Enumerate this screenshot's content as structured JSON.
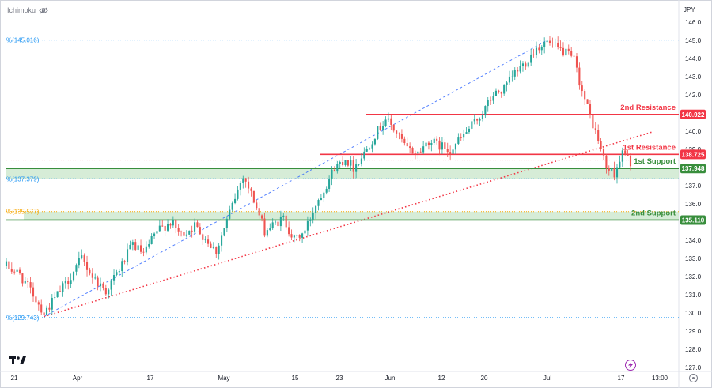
{
  "chart_data": {
    "type": "candlestick",
    "indicator_label": "Ichimoku",
    "currency_label": "JPY",
    "ylim": [
      126.7,
      146.8
    ],
    "y_ticks": [
      146.0,
      145.0,
      144.0,
      143.0,
      142.0,
      141.0,
      140.0,
      139.0,
      138.0,
      137.0,
      136.0,
      135.0,
      134.0,
      133.0,
      132.0,
      131.0,
      130.0,
      129.0,
      128.0,
      127.0
    ],
    "x_ticks": [
      "21",
      "Apr",
      "17",
      "May",
      "15",
      "23",
      "Jun",
      "12",
      "20",
      "Jul",
      "17",
      "13:00"
    ],
    "fib_levels": [
      {
        "label": "(145.016)",
        "value": 145.016,
        "color": "#2196f3"
      },
      {
        "label": "(137.379)",
        "value": 137.379,
        "color": "#2196f3"
      },
      {
        "label": "(135.577)",
        "value": 135.577,
        "color": "#f7a600"
      },
      {
        "label": "(129.743)",
        "value": 129.743,
        "color": "#2196f3"
      }
    ],
    "levels": [
      {
        "name": "2nd Resistance",
        "value": 140.922,
        "tag": "140.922",
        "color": "#f23645"
      },
      {
        "name": "1st Resistance",
        "value": 138.725,
        "tag": "138.725",
        "color": "#f23645"
      },
      {
        "name": "1st Support",
        "value": 137.948,
        "tag": "137.948",
        "color": "#388e3c"
      },
      {
        "name": "2nd Support",
        "value": 135.11,
        "tag": "135.110",
        "color": "#388e3c"
      }
    ],
    "colors": {
      "up": "#26a69a",
      "down": "#ef5350",
      "resistance": "#f23645",
      "support": "#388e3c",
      "support_zone": "#c8e6c9",
      "trendline": "#f23645",
      "channel": "#2962ff",
      "fib": "#2196f3"
    },
    "path_anchors": [
      [
        0,
        132.6
      ],
      [
        5,
        132.1
      ],
      [
        10,
        131.0
      ],
      [
        14,
        130.0
      ],
      [
        18,
        130.8
      ],
      [
        23,
        131.8
      ],
      [
        28,
        133.0
      ],
      [
        32,
        132.0
      ],
      [
        37,
        131.2
      ],
      [
        42,
        132.4
      ],
      [
        47,
        133.8
      ],
      [
        51,
        133.2
      ],
      [
        56,
        134.5
      ],
      [
        61,
        135.0
      ],
      [
        65,
        134.3
      ],
      [
        70,
        134.8
      ],
      [
        74,
        134.1
      ],
      [
        78,
        133.4
      ],
      [
        83,
        135.5
      ],
      [
        88,
        137.6
      ],
      [
        92,
        136.2
      ],
      [
        96,
        134.5
      ],
      [
        100,
        134.9
      ],
      [
        103,
        135.2
      ],
      [
        107,
        134.0
      ],
      [
        111,
        134.5
      ],
      [
        115,
        136.0
      ],
      [
        118,
        136.8
      ],
      [
        122,
        138.0
      ],
      [
        126,
        138.5
      ],
      [
        129,
        138.0
      ],
      [
        133,
        138.8
      ],
      [
        137,
        139.8
      ],
      [
        141,
        140.7
      ],
      [
        145,
        139.9
      ],
      [
        149,
        139.0
      ],
      [
        153,
        138.8
      ],
      [
        157,
        139.5
      ],
      [
        161,
        139.2
      ],
      [
        165,
        139.0
      ],
      [
        169,
        139.6
      ],
      [
        173,
        140.3
      ],
      [
        177,
        141.0
      ],
      [
        181,
        142.0
      ],
      [
        185,
        142.3
      ],
      [
        189,
        143.2
      ],
      [
        193,
        143.8
      ],
      [
        197,
        144.6
      ],
      [
        201,
        144.9
      ],
      [
        204,
        144.6
      ],
      [
        208,
        144.3
      ],
      [
        211,
        143.9
      ],
      [
        214,
        142.2
      ],
      [
        217,
        140.8
      ],
      [
        220,
        139.5
      ],
      [
        223,
        138.0
      ],
      [
        226,
        137.7
      ],
      [
        229,
        138.8
      ],
      [
        232,
        138.3
      ]
    ]
  }
}
